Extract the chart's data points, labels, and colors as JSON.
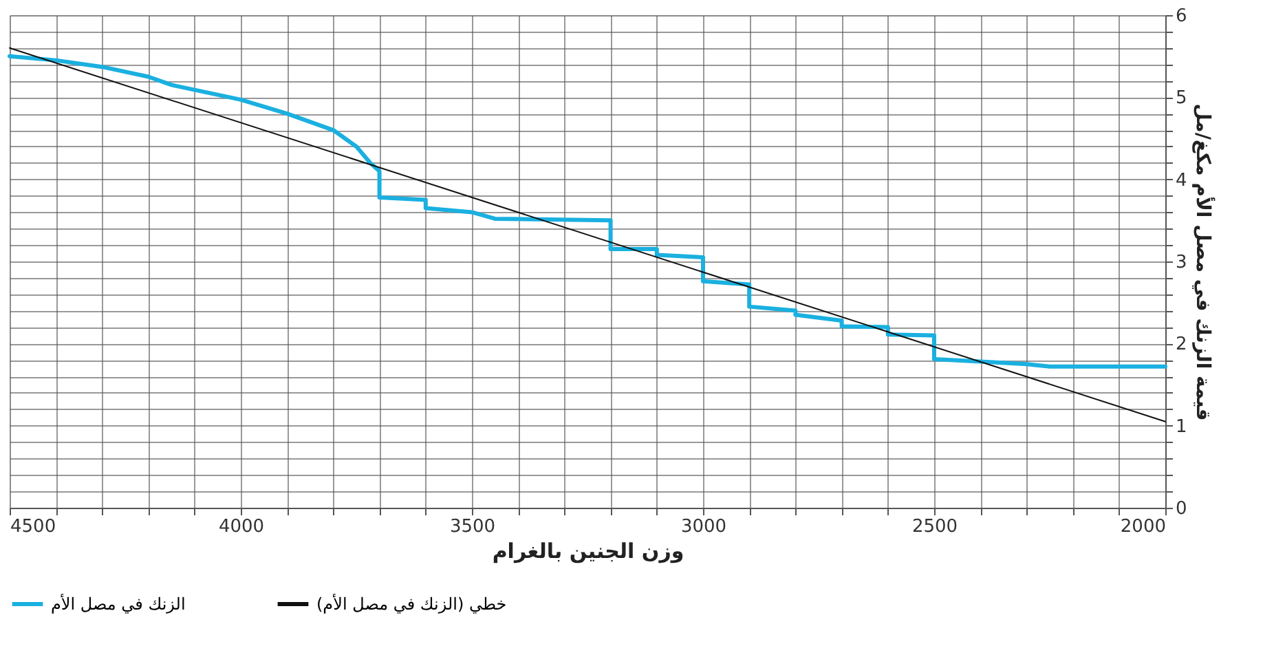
{
  "chart_data": {
    "type": "line",
    "xlabel": "وزن الجنين بالغرام",
    "ylabel": "قيمة الزنك في مصل الأم مكغ/مل",
    "xlim": [
      4500,
      2000
    ],
    "xticks": [
      4500,
      {
        "value": 4400,
        "label": null
      },
      {
        "value": 4300,
        "label": null
      },
      {
        "value": 4200,
        "label": null
      },
      {
        "value": 4100,
        "label": null
      },
      4000,
      {
        "value": 3900,
        "label": null
      },
      {
        "value": 3800,
        "label": null
      },
      {
        "value": 3700,
        "label": null
      },
      {
        "value": 3600,
        "label": null
      },
      3500,
      {
        "value": 3400,
        "label": null
      },
      {
        "value": 3300,
        "label": null
      },
      {
        "value": 3200,
        "label": null
      },
      {
        "value": 3100,
        "label": null
      },
      3000,
      {
        "value": 2900,
        "label": null
      },
      {
        "value": 2800,
        "label": null
      },
      {
        "value": 2700,
        "label": null
      },
      {
        "value": 2600,
        "label": null
      },
      2500,
      {
        "value": 2400,
        "label": null
      },
      {
        "value": 2300,
        "label": null
      },
      {
        "value": 2200,
        "label": null
      },
      {
        "value": 2100,
        "label": null
      },
      2000
    ],
    "ylim": [
      0,
      6
    ],
    "yticks": [
      0,
      {
        "value": 0.2,
        "label": null
      },
      {
        "value": 0.4,
        "label": null
      },
      {
        "value": 0.6,
        "label": null
      },
      {
        "value": 0.8,
        "label": null
      },
      1,
      {
        "value": 1.2,
        "label": null
      },
      {
        "value": 1.4,
        "label": null
      },
      {
        "value": 1.6,
        "label": null
      },
      {
        "value": 1.8,
        "label": null
      },
      2,
      {
        "value": 2.2,
        "label": null
      },
      {
        "value": 2.4,
        "label": null
      },
      {
        "value": 2.6,
        "label": null
      },
      {
        "value": 2.8,
        "label": null
      },
      3,
      {
        "value": 3.2,
        "label": null
      },
      {
        "value": 3.4,
        "label": null
      },
      {
        "value": 3.6,
        "label": null
      },
      {
        "value": 3.8,
        "label": null
      },
      4,
      {
        "value": 4.2,
        "label": null
      },
      {
        "value": 4.4,
        "label": null
      },
      {
        "value": 4.6,
        "label": null
      },
      {
        "value": 4.8,
        "label": null
      },
      5,
      {
        "value": 5.2,
        "label": null
      },
      {
        "value": 5.4,
        "label": null
      },
      {
        "value": 5.6,
        "label": null
      },
      {
        "value": 5.8,
        "label": null
      },
      6
    ],
    "grid": true,
    "legend": "bottom",
    "line_style": "solid",
    "series": [
      {
        "name": "الزنك في مصل الأم",
        "color": "#1ab0e0",
        "x": [
          4500,
          4400,
          4300,
          4200,
          4150,
          4000,
          3900,
          3800,
          3750,
          3720,
          3700,
          3700,
          3600,
          3600,
          3500,
          3450,
          3200,
          3200,
          3100,
          3100,
          3000,
          3000,
          2900,
          2900,
          2800,
          2800,
          2700,
          2700,
          2600,
          2600,
          2500,
          2500,
          2400,
          2300,
          2250,
          2000
        ],
        "values": [
          5.5,
          5.45,
          5.37,
          5.25,
          5.15,
          4.97,
          4.8,
          4.6,
          4.4,
          4.2,
          4.1,
          3.78,
          3.75,
          3.65,
          3.6,
          3.52,
          3.5,
          3.15,
          3.15,
          3.08,
          3.05,
          2.76,
          2.72,
          2.45,
          2.4,
          2.35,
          2.28,
          2.21,
          2.2,
          2.11,
          2.1,
          1.81,
          1.78,
          1.75,
          1.72,
          1.72
        ]
      },
      {
        "name": "خطي (الزنك في مصل الأم)",
        "color": "#111111",
        "x": [
          4500,
          2000
        ],
        "values": [
          5.6,
          1.05
        ]
      }
    ]
  }
}
